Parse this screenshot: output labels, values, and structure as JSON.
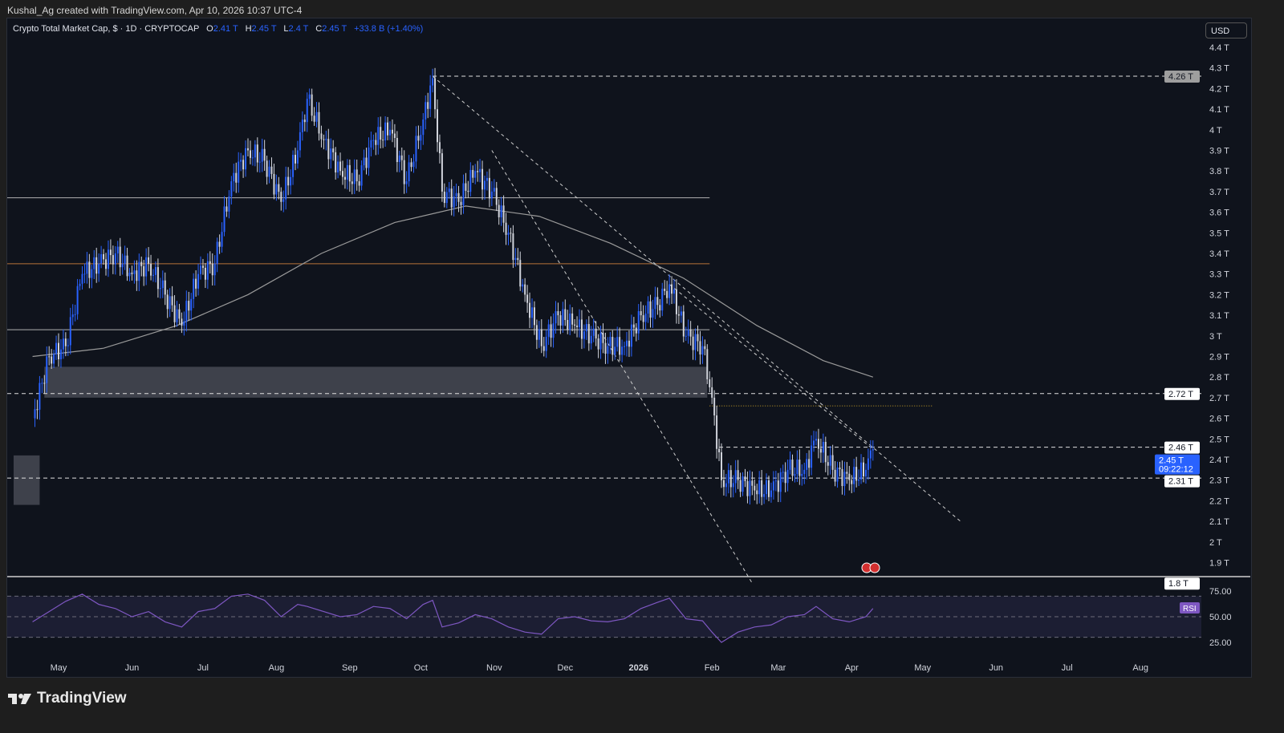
{
  "attribution": "Kushal_Ag created with TradingView.com, Apr 10, 2026 10:37 UTC-4",
  "legend": {
    "symbol": "Crypto Total Market Cap, $ · 1D · CRYPTOCAP",
    "open_label": "O",
    "open": "2.41 T",
    "high_label": "H",
    "high": "2.45 T",
    "low_label": "L",
    "low": "2.4 T",
    "close_label": "C",
    "close": "2.45 T",
    "change": "+33.8 B (+1.40%)"
  },
  "currency": "USD",
  "branding": {
    "name": "TradingView",
    "icon": "tradingview-logo-icon"
  },
  "colors": {
    "up": "#2962ff",
    "down": "#d1d4dc",
    "background": "#0f131c",
    "rsi": "#7e57c2",
    "ma": "#9a9a9a",
    "accent": "#2962ff"
  },
  "chart_data": {
    "type": "candlestick",
    "symbol": "Crypto Total Market Cap",
    "interval": "1D",
    "y_axis": {
      "unit": "T",
      "ticks": [
        "4.4 T",
        "4.3 T",
        "4.2 T",
        "4.1 T",
        "4 T",
        "3.9 T",
        "3.8 T",
        "3.7 T",
        "3.6 T",
        "3.5 T",
        "3.4 T",
        "3.3 T",
        "3.2 T",
        "3.1 T",
        "3 T",
        "2.9 T",
        "2.8 T",
        "2.7 T",
        "2.6 T",
        "2.5 T",
        "2.4 T",
        "2.3 T",
        "2.2 T",
        "2.1 T",
        "2 T",
        "1.9 T"
      ],
      "range": [
        1.8,
        4.45
      ]
    },
    "x_axis": {
      "ticks": [
        "May",
        "Jun",
        "Jul",
        "Aug",
        "Sep",
        "Oct",
        "Nov",
        "Dec",
        "2026",
        "Feb",
        "Mar",
        "Apr",
        "May",
        "Jun",
        "Jul",
        "Aug"
      ],
      "tick_dates": [
        "2025-05-01",
        "2025-06-01",
        "2025-07-01",
        "2025-08-01",
        "2025-09-01",
        "2025-10-01",
        "2025-11-01",
        "2025-12-01",
        "2026-01-01",
        "2026-02-01",
        "2026-03-01",
        "2026-04-01",
        "2026-05-01",
        "2026-06-01",
        "2026-07-01",
        "2026-08-01"
      ]
    },
    "price_labels": [
      {
        "value": 4.26,
        "text": "4.26 T",
        "style": "gray"
      },
      {
        "value": 2.72,
        "text": "2.72 T",
        "style": "white"
      },
      {
        "value": 2.46,
        "text": "2.46 T",
        "style": "white"
      },
      {
        "value": 2.45,
        "text": "2.45 T",
        "sub": "09:22:12",
        "style": "blue"
      },
      {
        "value": 2.31,
        "text": "2.31 T",
        "style": "white"
      },
      {
        "value": 1.8,
        "text": "1.8 T",
        "style": "white"
      }
    ],
    "series": {
      "dates": [
        "2025-04-20",
        "2025-04-27",
        "2025-05-04",
        "2025-05-11",
        "2025-05-18",
        "2025-05-25",
        "2025-06-01",
        "2025-06-08",
        "2025-06-15",
        "2025-06-22",
        "2025-06-29",
        "2025-07-06",
        "2025-07-13",
        "2025-07-20",
        "2025-07-27",
        "2025-08-03",
        "2025-08-10",
        "2025-08-14",
        "2025-08-21",
        "2025-08-28",
        "2025-09-04",
        "2025-09-11",
        "2025-09-18",
        "2025-09-25",
        "2025-10-02",
        "2025-10-06",
        "2025-10-10",
        "2025-10-17",
        "2025-10-24",
        "2025-10-31",
        "2025-11-07",
        "2025-11-14",
        "2025-11-21",
        "2025-11-28",
        "2025-12-05",
        "2025-12-12",
        "2025-12-19",
        "2025-12-26",
        "2026-01-02",
        "2026-01-09",
        "2026-01-14",
        "2026-01-21",
        "2026-01-28",
        "2026-02-01",
        "2026-02-05",
        "2026-02-12",
        "2026-02-19",
        "2026-02-26",
        "2026-03-05",
        "2026-03-12",
        "2026-03-17",
        "2026-03-24",
        "2026-03-31",
        "2026-04-07",
        "2026-04-10"
      ],
      "close": [
        2.6,
        2.9,
        2.95,
        3.3,
        3.35,
        3.4,
        3.3,
        3.35,
        3.2,
        3.05,
        3.3,
        3.35,
        3.75,
        3.9,
        3.85,
        3.65,
        3.9,
        4.15,
        3.95,
        3.8,
        3.75,
        3.95,
        4.0,
        3.75,
        4.05,
        4.25,
        3.7,
        3.65,
        3.8,
        3.7,
        3.5,
        3.2,
        2.95,
        3.1,
        3.05,
        3.0,
        2.95,
        2.95,
        3.1,
        3.15,
        3.25,
        3.0,
        2.95,
        2.7,
        2.3,
        2.3,
        2.25,
        2.25,
        2.35,
        2.35,
        2.5,
        2.35,
        2.3,
        2.35,
        2.45
      ],
      "rsi": [
        45,
        55,
        65,
        72,
        62,
        58,
        50,
        55,
        45,
        40,
        55,
        58,
        70,
        72,
        66,
        50,
        62,
        60,
        55,
        50,
        52,
        60,
        58,
        48,
        62,
        66,
        40,
        44,
        52,
        48,
        40,
        35,
        33,
        48,
        50,
        46,
        45,
        48,
        58,
        64,
        68,
        48,
        46,
        35,
        25,
        35,
        40,
        42,
        50,
        52,
        60,
        48,
        45,
        50,
        58
      ]
    },
    "ma": {
      "dates": [
        "2025-04-20",
        "2025-05-20",
        "2025-06-20",
        "2025-07-20",
        "2025-08-20",
        "2025-09-20",
        "2025-10-20",
        "2025-11-20",
        "2025-12-20",
        "2026-01-20",
        "2026-02-20",
        "2026-03-20",
        "2026-04-10"
      ],
      "values": [
        2.9,
        2.94,
        3.05,
        3.2,
        3.4,
        3.55,
        3.63,
        3.58,
        3.45,
        3.28,
        3.05,
        2.88,
        2.8
      ]
    },
    "levels": [
      {
        "value": 4.26,
        "from": "2025-10-06",
        "to": "end",
        "style": "dashed"
      },
      {
        "value": 3.67,
        "from": "start",
        "to": "2026-01-31",
        "style": "solid"
      },
      {
        "value": 3.35,
        "from": "start",
        "to": "2026-01-31",
        "style": "orange"
      },
      {
        "value": 3.03,
        "from": "start",
        "to": "2026-01-31",
        "style": "solid"
      },
      {
        "value": 2.72,
        "from": "start",
        "to": "end",
        "style": "dashed"
      },
      {
        "value": 2.66,
        "from": "2026-01-31",
        "to": "2026-05-05",
        "style": "dotted-yellow"
      },
      {
        "value": 2.46,
        "from": "2026-02-04",
        "to": "end",
        "style": "dashed"
      },
      {
        "value": 2.31,
        "from": "start",
        "to": "end",
        "style": "dashed"
      }
    ],
    "zones": [
      {
        "from": "2025-04-25",
        "to": "2026-01-30",
        "low": 2.7,
        "high": 2.85
      },
      {
        "from": "2025-04-12",
        "to": "2025-04-23",
        "low": 2.18,
        "high": 2.42
      }
    ],
    "trendlines": [
      {
        "from": [
          "2025-10-06",
          4.26
        ],
        "to": [
          "2026-05-17",
          2.1
        ]
      },
      {
        "from": [
          "2025-10-31",
          3.9
        ],
        "to": [
          "2026-02-18",
          1.8
        ]
      },
      {
        "from": [
          "2026-01-14",
          3.25
        ],
        "to": [
          "2026-04-10",
          2.45
        ]
      }
    ],
    "rsi_axis": {
      "ticks": [
        "75.00",
        "50.00",
        "25.00"
      ],
      "label": "RSI"
    }
  }
}
